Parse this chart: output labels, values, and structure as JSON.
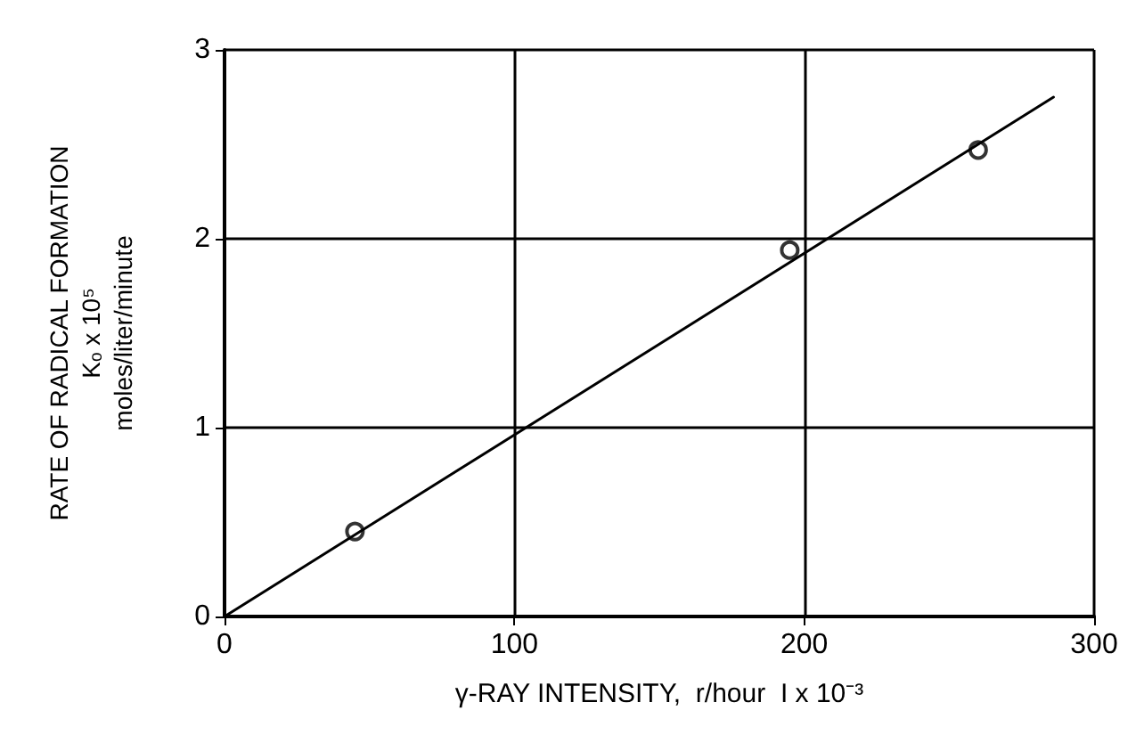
{
  "chart_data": {
    "type": "scatter",
    "xlabel": "γ-RAY INTENSITY,  r/hour  I x 10⁻³",
    "ylabel": "RATE OF RADICAL FORMATION\nKₒ x 10⁵\nmoles/liter/minute",
    "xlim": [
      0,
      300
    ],
    "ylim": [
      0,
      3
    ],
    "xticks": [
      0,
      100,
      200,
      300
    ],
    "yticks": [
      0,
      1,
      2,
      3
    ],
    "grid": true,
    "marker": "circle",
    "series": [
      {
        "type": "scatter",
        "color": "#000000",
        "x": [
          45,
          195,
          260
        ],
        "values": [
          0.45,
          1.94,
          2.47
        ]
      },
      {
        "type": "line",
        "color": "#000000",
        "marker": "none",
        "line_style": "solid",
        "x": [
          0,
          286
        ],
        "values": [
          0,
          2.75
        ]
      }
    ]
  }
}
